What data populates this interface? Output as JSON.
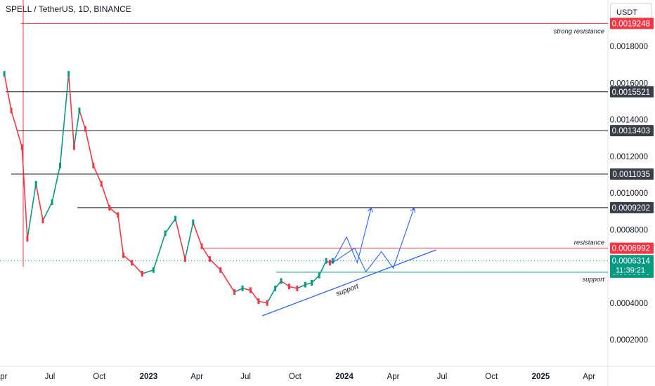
{
  "header": {
    "title": "SPELL / TetherUS, 1D, BINANCE"
  },
  "currency_button": {
    "label": "USDT"
  },
  "colors": {
    "red_line": "#f23645",
    "black_line": "#131722",
    "green_line": "#089981",
    "blue_projection": "#2962ff",
    "candle_up": "#089981",
    "candle_down": "#f23645"
  },
  "chart_data": {
    "type": "line",
    "title": "SPELL / TetherUS, 1D, BINANCE",
    "xlabel": "",
    "ylabel": "",
    "ylim": [
      0.0001,
      0.0021
    ],
    "x_ticks": [
      "Apr",
      "Jul",
      "Oct",
      "2023",
      "Apr",
      "Jul",
      "Oct",
      "2024",
      "Apr",
      "Jul",
      "Oct",
      "2025",
      "Apr"
    ],
    "x_tick_dates": [
      "2022-04-01",
      "2022-07-01",
      "2022-10-01",
      "2023-01-01",
      "2023-04-01",
      "2023-07-01",
      "2023-10-01",
      "2024-01-01",
      "2024-04-01",
      "2024-07-01",
      "2024-10-01",
      "2025-01-01",
      "2025-04-01"
    ],
    "y_ticks": [
      0.0018,
      0.0016,
      0.0014,
      0.0012,
      0.001,
      0.0008,
      0.0004,
      0.0002
    ],
    "y_tick_labels": [
      "0.0018000",
      "0.0016000",
      "0.0014000",
      "0.0012000",
      "0.0010000",
      "0.0008000",
      "0.0004000",
      "0.0002000"
    ],
    "price_series": {
      "name": "",
      "dates": [
        "2022-04-07",
        "2022-04-20",
        "2022-05-10",
        "2022-05-20",
        "2022-06-05",
        "2022-06-18",
        "2022-07-05",
        "2022-07-20",
        "2022-08-05",
        "2022-08-15",
        "2022-08-25",
        "2022-09-05",
        "2022-09-20",
        "2022-10-05",
        "2022-10-20",
        "2022-11-05",
        "2022-11-15",
        "2022-12-01",
        "2022-12-20",
        "2023-01-10",
        "2023-02-01",
        "2023-02-20",
        "2023-03-10",
        "2023-03-25",
        "2023-04-10",
        "2023-04-25",
        "2023-05-15",
        "2023-06-10",
        "2023-06-25",
        "2023-07-10",
        "2023-07-25",
        "2023-08-10",
        "2023-08-25",
        "2023-09-05",
        "2023-09-20",
        "2023-10-05",
        "2023-10-20",
        "2023-11-01",
        "2023-11-15",
        "2023-11-28",
        "2023-12-05",
        "2023-12-10"
      ],
      "values": [
        0.00165,
        0.00145,
        0.00125,
        0.00075,
        0.00105,
        0.00085,
        0.00095,
        0.00115,
        0.00165,
        0.00125,
        0.00145,
        0.00135,
        0.00115,
        0.00105,
        0.00092,
        0.00088,
        0.00066,
        0.00062,
        0.00056,
        0.00058,
        0.00078,
        0.00086,
        0.00064,
        0.00084,
        0.00071,
        0.00064,
        0.00058,
        0.00046,
        0.00048,
        0.00047,
        0.00041,
        0.0004,
        0.00048,
        0.00052,
        0.00049,
        0.00048,
        0.0005,
        0.00051,
        0.00055,
        0.00063,
        0.00062,
        0.00063
      ]
    },
    "levels": [
      {
        "label": "0.0019248",
        "value": 0.0019248,
        "color": "#f23645",
        "annotation": "strong resistance"
      },
      {
        "label": "0.0015521",
        "value": 0.0015521,
        "color": "#131722",
        "annotation": ""
      },
      {
        "label": "0.0013403",
        "value": 0.0013403,
        "color": "#131722",
        "annotation": ""
      },
      {
        "label": "0.0011035",
        "value": 0.0011035,
        "color": "#131722",
        "annotation": ""
      },
      {
        "label": "0.0009202",
        "value": 0.0009202,
        "color": "#131722",
        "annotation": ""
      },
      {
        "label": "0.0006992",
        "value": 0.0006992,
        "color": "#f23645",
        "annotation": "resistance"
      },
      {
        "label": "0.0005679",
        "value": 0.0005679,
        "color": "#089981",
        "annotation": "support"
      }
    ],
    "last_price": {
      "label": "0.0006314",
      "value": 0.0006314,
      "countdown": "11:39:21",
      "color": "#089981"
    },
    "trendline": {
      "label": "support",
      "start": [
        "2023-08-01",
        0.00033
      ],
      "end": [
        "2024-06-20",
        0.00069
      ]
    },
    "projections": [
      {
        "points": [
          [
            "2023-12-10",
            0.00062
          ],
          [
            "2024-01-05",
            0.00076
          ],
          [
            "2024-01-25",
            0.00062
          ],
          [
            "2024-02-20",
            0.00092
          ]
        ]
      },
      {
        "points": [
          [
            "2023-12-10",
            0.00062
          ],
          [
            "2024-01-20",
            0.0007
          ],
          [
            "2024-02-10",
            0.00057
          ],
          [
            "2024-03-10",
            0.00068
          ],
          [
            "2024-04-01",
            0.00059
          ],
          [
            "2024-05-10",
            0.00092
          ]
        ]
      }
    ],
    "grid": false,
    "legend": "none"
  }
}
